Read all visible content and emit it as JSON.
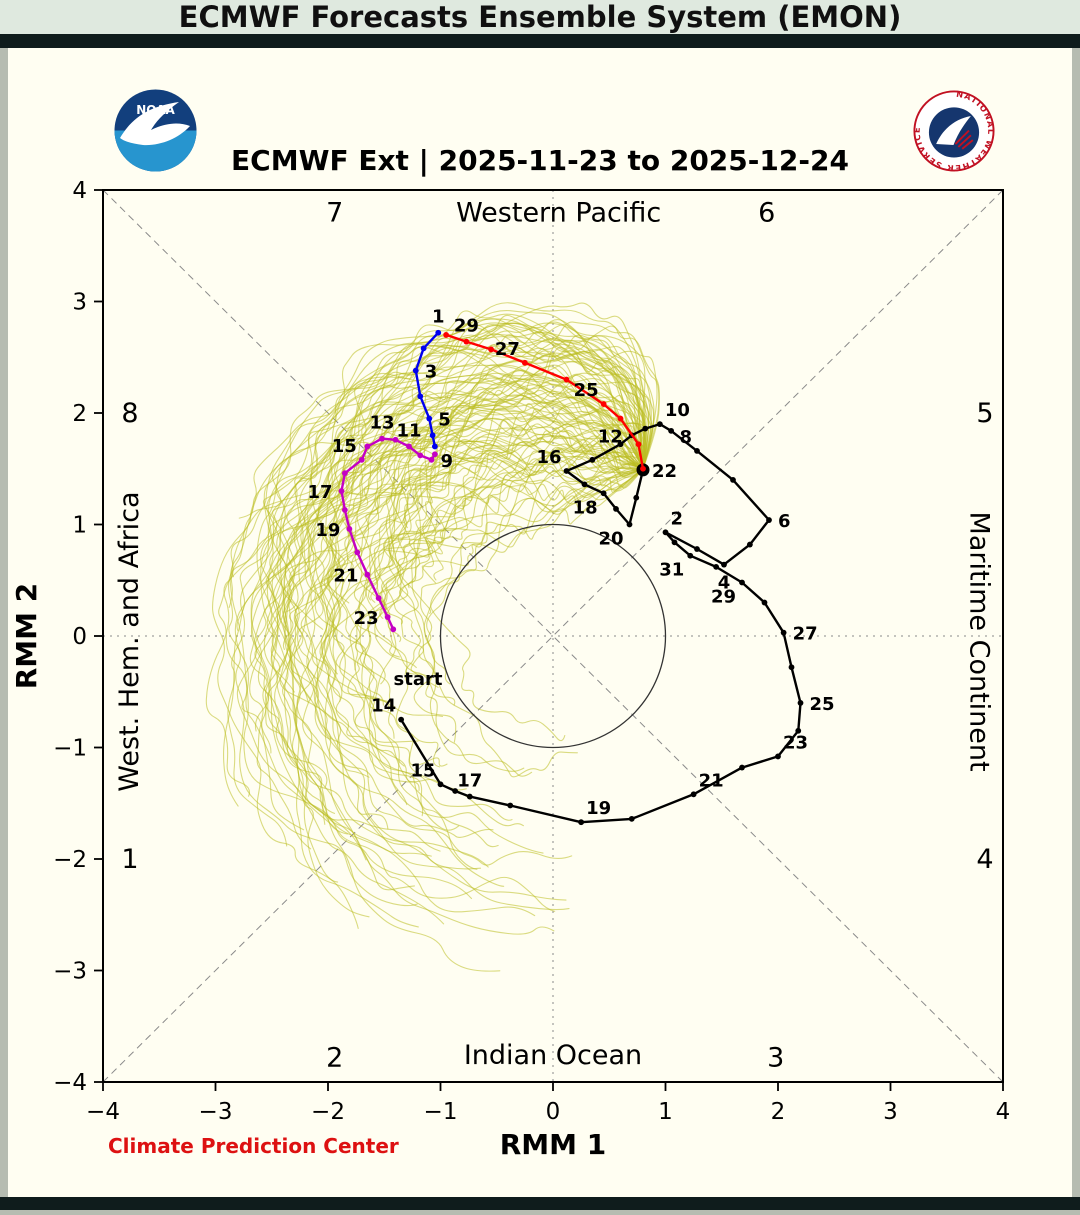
{
  "header": {
    "title": "ECMWF Forecasts Ensemble System (EMON)"
  },
  "figure": {
    "title": "ECMWF Ext | 2025-11-23 to 2025-12-24",
    "credit": "Climate Prediction Center"
  },
  "logos": {
    "noaa_text": "NOAA",
    "nws_ring_text": "NATIONAL WEATHER SERVICE"
  },
  "chart_data": {
    "type": "line",
    "title": "ECMWF Ext | 2025-11-23 to 2025-12-24",
    "xlabel": "RMM 1",
    "ylabel": "RMM 2",
    "xlim": [
      -4,
      4
    ],
    "ylim": [
      -4,
      4
    ],
    "tick_values": [
      -4,
      -3,
      -2,
      -1,
      0,
      1,
      2,
      3,
      4
    ],
    "tick_labels": [
      "−4",
      "−3",
      "−2",
      "−1",
      "0",
      "1",
      "2",
      "3",
      "4"
    ],
    "unit_circle_radius": 1,
    "grid": {
      "zero_lines": "dotted",
      "diagonals": "dashed",
      "line_color": "#8a8a8a"
    },
    "phase_labels": [
      {
        "n": "7",
        "x": -1.94,
        "y": 3.8
      },
      {
        "n": "6",
        "x": 1.9,
        "y": 3.8
      },
      {
        "n": "8",
        "x": -3.76,
        "y": 2.0
      },
      {
        "n": "5",
        "x": 3.84,
        "y": 2.0
      },
      {
        "n": "1",
        "x": -3.76,
        "y": -2.0
      },
      {
        "n": "4",
        "x": 3.84,
        "y": -2.0
      },
      {
        "n": "2",
        "x": -1.94,
        "y": -3.78
      },
      {
        "n": "3",
        "x": 1.98,
        "y": -3.78
      }
    ],
    "region_labels": [
      {
        "text": "Western Pacific",
        "x": 0.05,
        "y": 3.8,
        "rot": 0
      },
      {
        "text": "Indian Ocean",
        "x": 0.0,
        "y": -3.76,
        "rot": 0
      },
      {
        "text": "West. Hem. and Africa",
        "x": -3.76,
        "y": -0.05,
        "rot": -90
      },
      {
        "text": "Maritime Continent",
        "x": 3.78,
        "y": -0.05,
        "rot": 90
      }
    ],
    "observed": {
      "name": "observed-rmm-index",
      "color": "#000000",
      "start_annotation": {
        "text": "start",
        "x": -1.2,
        "y": -0.44
      },
      "points": [
        [
          -1.35,
          -0.75,
          "14",
          "tl"
        ],
        [
          -1.0,
          -1.33,
          "15",
          "tl"
        ],
        [
          -0.87,
          -1.39,
          "",
          ""
        ],
        [
          -0.74,
          -1.44,
          "17",
          "t"
        ],
        [
          -0.38,
          -1.52,
          "",
          ""
        ],
        [
          0.25,
          -1.67,
          "19",
          "tr"
        ],
        [
          0.7,
          -1.64,
          "",
          ""
        ],
        [
          1.25,
          -1.42,
          "21",
          "tr"
        ],
        [
          1.68,
          -1.18,
          "",
          ""
        ],
        [
          2.0,
          -1.08,
          "23",
          "tr"
        ],
        [
          2.18,
          -0.85,
          "",
          ""
        ],
        [
          2.2,
          -0.6,
          "25",
          "r"
        ],
        [
          2.12,
          -0.28,
          "",
          ""
        ],
        [
          2.05,
          0.03,
          "27",
          "r"
        ],
        [
          1.88,
          0.3,
          "",
          ""
        ],
        [
          1.68,
          0.48,
          "29",
          "bl"
        ],
        [
          1.45,
          0.62,
          "",
          ""
        ],
        [
          1.22,
          0.72,
          "31",
          "bl"
        ],
        [
          1.08,
          0.84,
          "",
          ""
        ],
        [
          1.0,
          0.93,
          "2",
          "tr"
        ],
        [
          1.28,
          0.78,
          "",
          ""
        ],
        [
          1.52,
          0.64,
          "4",
          "b"
        ],
        [
          1.75,
          0.82,
          "",
          ""
        ],
        [
          1.92,
          1.04,
          "6",
          "r"
        ],
        [
          1.6,
          1.4,
          "",
          ""
        ],
        [
          1.28,
          1.66,
          "8",
          "tl"
        ],
        [
          1.05,
          1.84,
          "",
          ""
        ],
        [
          0.95,
          1.9,
          "10",
          "tr"
        ],
        [
          0.82,
          1.86,
          "",
          ""
        ],
        [
          0.7,
          1.8,
          "12",
          "l"
        ],
        [
          0.6,
          1.72,
          "",
          ""
        ],
        [
          0.35,
          1.58,
          "",
          ""
        ],
        [
          0.12,
          1.48,
          "16",
          "tl"
        ],
        [
          0.28,
          1.36,
          "",
          ""
        ],
        [
          0.45,
          1.28,
          "18",
          "bl"
        ],
        [
          0.56,
          1.14,
          "",
          ""
        ],
        [
          0.68,
          1.0,
          "20",
          "bl"
        ],
        [
          0.74,
          1.24,
          "",
          ""
        ],
        [
          0.8,
          1.49,
          "22",
          "r"
        ]
      ]
    },
    "forecast_segments": [
      {
        "name": "forecast-week1",
        "color": "#ff0000",
        "points": [
          [
            0.8,
            1.5,
            "",
            ""
          ],
          [
            0.76,
            1.72,
            "",
            ""
          ],
          [
            0.6,
            1.95,
            "",
            ""
          ],
          [
            0.45,
            2.08,
            "25",
            "tl"
          ],
          [
            0.12,
            2.3,
            "",
            ""
          ],
          [
            -0.25,
            2.45,
            "27",
            "tl"
          ],
          [
            -0.55,
            2.57,
            "",
            ""
          ],
          [
            -0.77,
            2.64,
            "29",
            "t"
          ],
          [
            -0.95,
            2.7,
            "",
            ""
          ]
        ]
      },
      {
        "name": "forecast-week2",
        "color": "#0000ee",
        "points": [
          [
            -1.02,
            2.72,
            "1",
            "t"
          ],
          [
            -1.15,
            2.58,
            "",
            ""
          ],
          [
            -1.22,
            2.38,
            "3",
            "r"
          ],
          [
            -1.18,
            2.15,
            "",
            ""
          ],
          [
            -1.1,
            1.95,
            "5",
            "r"
          ],
          [
            -1.07,
            1.8,
            "",
            ""
          ],
          [
            -1.05,
            1.7,
            "",
            ""
          ]
        ]
      },
      {
        "name": "forecast-weeks3plus",
        "color": "#c400c4",
        "points": [
          [
            -1.05,
            1.63,
            "",
            ""
          ],
          [
            -1.08,
            1.58,
            "9",
            "r"
          ],
          [
            -1.18,
            1.62,
            "",
            ""
          ],
          [
            -1.28,
            1.7,
            "11",
            "t"
          ],
          [
            -1.4,
            1.76,
            "",
            ""
          ],
          [
            -1.52,
            1.77,
            "13",
            "t"
          ],
          [
            -1.65,
            1.7,
            "",
            ""
          ],
          [
            -1.7,
            1.58,
            "15",
            "tl"
          ],
          [
            -1.85,
            1.46,
            "",
            ""
          ],
          [
            -1.88,
            1.3,
            "17",
            "l"
          ],
          [
            -1.85,
            1.13,
            "",
            ""
          ],
          [
            -1.81,
            0.96,
            "19",
            "l"
          ],
          [
            -1.74,
            0.75,
            "",
            ""
          ],
          [
            -1.65,
            0.55,
            "21",
            "l"
          ],
          [
            -1.55,
            0.34,
            "",
            ""
          ],
          [
            -1.47,
            0.17,
            "23",
            "l"
          ],
          [
            -1.42,
            0.06,
            "",
            ""
          ]
        ]
      }
    ],
    "ensemble": {
      "name": "ensemble-members",
      "color": "#bcbd22",
      "opacity": 0.55,
      "stroke_width": 1.1,
      "count": 110,
      "seed": 17,
      "start": [
        0.8,
        1.5
      ]
    }
  }
}
